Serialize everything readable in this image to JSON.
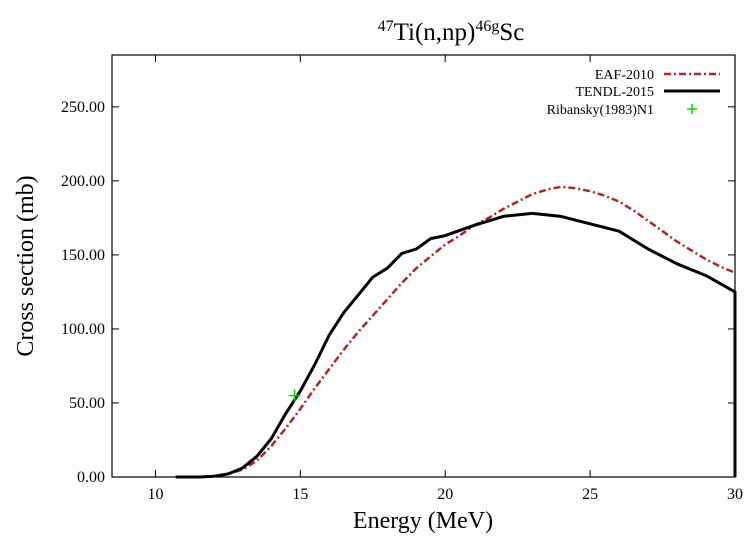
{
  "chart_data": {
    "type": "line",
    "title": {
      "sup1": "47",
      "base1": "Ti(n,np)",
      "sup2": "46g",
      "base2": "Sc"
    },
    "xlabel": "Energy (MeV)",
    "ylabel": "Cross section (mb)",
    "xlim": [
      8.5,
      30
    ],
    "ylim": [
      0,
      285
    ],
    "xticks": [
      10,
      15,
      20,
      25,
      30
    ],
    "xtick_labels": [
      "10",
      "15",
      "20",
      "25",
      "30"
    ],
    "yticks": [
      0,
      50,
      100,
      150,
      200,
      250
    ],
    "ytick_labels": [
      "0.00",
      "50.00",
      "100.00",
      "150.00",
      "200.00",
      "250.00"
    ],
    "grid": false,
    "legend_position": "top-right",
    "series": [
      {
        "name": "EAF-2010",
        "style": "dash-dot",
        "color": "#a52a2a",
        "x": [
          10.7,
          11.5,
          12.0,
          12.5,
          13.0,
          13.5,
          14.0,
          14.5,
          15.0,
          15.5,
          16.0,
          16.5,
          17.0,
          17.5,
          18.0,
          18.5,
          19.0,
          19.5,
          20.0,
          20.5,
          21.0,
          21.5,
          22.0,
          22.5,
          23.0,
          23.5,
          24.0,
          24.5,
          25.0,
          25.5,
          26.0,
          26.5,
          27.0,
          27.5,
          28.0,
          28.5,
          29.0,
          29.5,
          30.0
        ],
        "y": [
          0,
          0,
          0.5,
          2,
          5,
          11,
          21,
          33,
          46,
          60,
          73,
          86,
          98,
          109,
          120,
          131,
          141,
          149,
          157,
          163,
          170,
          175,
          181,
          186,
          191,
          194,
          196,
          195,
          193,
          190,
          186,
          180,
          173,
          166,
          159,
          153,
          147,
          142,
          138
        ]
      },
      {
        "name": "TENDL-2015",
        "style": "solid",
        "color": "#000000",
        "x": [
          10.7,
          11.5,
          12.0,
          12.5,
          13.0,
          13.5,
          14.0,
          14.5,
          15.0,
          15.5,
          16.0,
          16.5,
          17.0,
          17.5,
          18.0,
          18.5,
          19.0,
          19.5,
          20.0,
          21.0,
          22.0,
          23.0,
          24.0,
          25.0,
          26.0,
          27.0,
          28.0,
          29.0,
          30.0,
          30.0
        ],
        "y": [
          0,
          0,
          0.5,
          2,
          6,
          14,
          26,
          43,
          58,
          76,
          96,
          111,
          123,
          135,
          141,
          151,
          154,
          161,
          163,
          170,
          176,
          178,
          176,
          171,
          166,
          154,
          144,
          136,
          125,
          0
        ]
      },
      {
        "name": "Ribansky(1983)N1",
        "style": "points",
        "color": "#00dd00",
        "x": [
          14.8
        ],
        "y": [
          55
        ]
      }
    ]
  }
}
